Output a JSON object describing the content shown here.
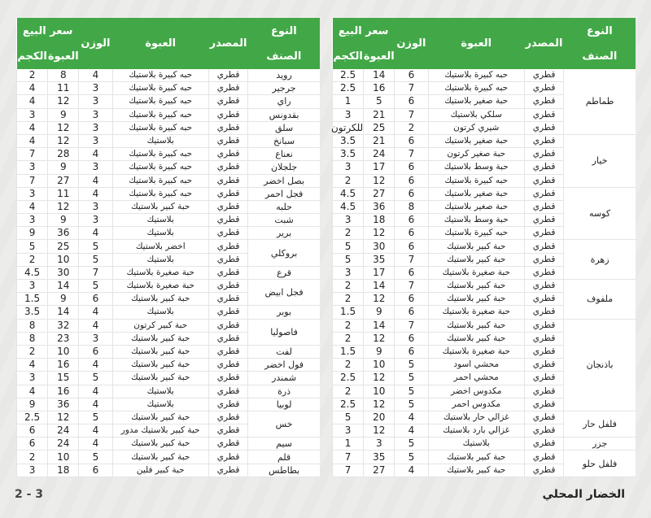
{
  "headers": {
    "type_top": "النوع",
    "type_bottom": "الصنف",
    "source": "المصدر",
    "package": "العبوة",
    "weight": "الوزن",
    "price": "سعر البيع",
    "price_box": "العبوة",
    "price_kg": "الكجم"
  },
  "colors": {
    "header_green": "#42a847"
  },
  "right_table": [
    {
      "type": "طماطم",
      "items": [
        [
          "قطري",
          "حبه كبيرة بلاستيك",
          "6",
          "14",
          "2.5"
        ],
        [
          "قطري",
          "حبه كبيرة بلاستيك",
          "7",
          "16",
          "2.5"
        ],
        [
          "قطري",
          "حبة صغير بلاستيك",
          "6",
          "5",
          "1"
        ],
        [
          "قطري",
          "سلكي بلاستيك",
          "7",
          "21",
          "3"
        ],
        [
          "قطري",
          "شيري كرتون",
          "2",
          "25",
          "للكرتون"
        ]
      ]
    },
    {
      "type": "خيار",
      "items": [
        [
          "قطري",
          "حبة صغير بلاستيك",
          "6",
          "21",
          "3.5"
        ],
        [
          "قطري",
          "حبة صغير كرتون",
          "7",
          "24",
          "3.5"
        ],
        [
          "قطري",
          "حبة وسط بلاستيك",
          "6",
          "17",
          "3"
        ],
        [
          "قطري",
          "حبه كبيرة بلاستيك",
          "6",
          "12",
          "2"
        ]
      ]
    },
    {
      "type": "كوسه",
      "items": [
        [
          "قطري",
          "حبة صغير بلاستيك",
          "6",
          "27",
          "4.5"
        ],
        [
          "قطري",
          "حبة صغير بلاستيك",
          "8",
          "36",
          "4.5"
        ],
        [
          "قطري",
          "حبة وسط بلاستيك",
          "6",
          "18",
          "3"
        ],
        [
          "قطري",
          "حبه كبيرة بلاستيك",
          "6",
          "12",
          "2"
        ]
      ]
    },
    {
      "type": "زهرة",
      "items": [
        [
          "قطري",
          "حبة كبير بلاستيك",
          "6",
          "30",
          "5"
        ],
        [
          "قطري",
          "حبة كبير بلاستيك",
          "7",
          "35",
          "5"
        ],
        [
          "قطري",
          "حبة صغيرة بلاستيك",
          "6",
          "17",
          "3"
        ]
      ]
    },
    {
      "type": "ملفوف",
      "items": [
        [
          "قطري",
          "حبة كبير بلاستيك",
          "7",
          "14",
          "2"
        ],
        [
          "قطري",
          "حبة كبير بلاستيك",
          "6",
          "12",
          "2"
        ],
        [
          "قطري",
          "حبة صغيرة بلاستيك",
          "6",
          "9",
          "1.5"
        ]
      ]
    },
    {
      "type": "باذنجان",
      "items": [
        [
          "قطري",
          "حبة كبير بلاستيك",
          "7",
          "14",
          "2"
        ],
        [
          "قطري",
          "حبة كبير بلاستيك",
          "6",
          "12",
          "2"
        ],
        [
          "قطري",
          "حبة صغيرة بلاستيك",
          "6",
          "9",
          "1.5"
        ],
        [
          "قطري",
          "محشي اسود",
          "5",
          "10",
          "2"
        ],
        [
          "قطري",
          "محشي احمر",
          "5",
          "12",
          "2.5"
        ],
        [
          "قطري",
          "مكدوس اخضر",
          "5",
          "10",
          "2"
        ],
        [
          "قطري",
          "مكدوس احمر",
          "5",
          "12",
          "2.5"
        ]
      ]
    },
    {
      "type": "فلفل حار",
      "items": [
        [
          "قطري",
          "غزالي حار بلاستيك",
          "4",
          "20",
          "5"
        ],
        [
          "قطري",
          "غزالي بارد بلاستيك",
          "4",
          "12",
          "3"
        ]
      ]
    },
    {
      "type": "جزر",
      "items": [
        [
          "قطري",
          "بلاستيك",
          "5",
          "3",
          "1"
        ]
      ]
    },
    {
      "type": "فلفل حلو",
      "items": [
        [
          "قطري",
          "حبة كبير بلاستيك",
          "5",
          "35",
          "7"
        ],
        [
          "قطري",
          "حبة كبير بلاستيك",
          "4",
          "27",
          "7"
        ]
      ]
    }
  ],
  "left_table": [
    {
      "type": "رويد",
      "items": [
        [
          "قطري",
          "حبه كبيرة بلاستيك",
          "4",
          "8",
          "2"
        ]
      ]
    },
    {
      "type": "جرجير",
      "items": [
        [
          "قطري",
          "حبه كبيرة بلاستيك",
          "3",
          "11",
          "4"
        ]
      ]
    },
    {
      "type": "راي",
      "items": [
        [
          "قطري",
          "حبه كبيرة بلاستيك",
          "3",
          "12",
          "4"
        ]
      ]
    },
    {
      "type": "بقدونس",
      "items": [
        [
          "قطري",
          "حبه كبيرة بلاستيك",
          "3",
          "9",
          "3"
        ]
      ]
    },
    {
      "type": "سلق",
      "items": [
        [
          "قطري",
          "حبه كبيرة بلاستيك",
          "3",
          "12",
          "4"
        ]
      ]
    },
    {
      "type": "سبانخ",
      "items": [
        [
          "قطري",
          "بلاستيك",
          "3",
          "12",
          "4"
        ]
      ]
    },
    {
      "type": "نعناع",
      "items": [
        [
          "قطري",
          "حبه كبيرة بلاستيك",
          "4",
          "28",
          "7"
        ]
      ]
    },
    {
      "type": "جلجلان",
      "items": [
        [
          "قطري",
          "حبه كبيرة بلاستيك",
          "3",
          "9",
          "3"
        ]
      ]
    },
    {
      "type": "بصل اخضر",
      "items": [
        [
          "قطري",
          "حبه كبيرة بلاستيك",
          "4",
          "27",
          "7"
        ]
      ]
    },
    {
      "type": "فجل احمر",
      "items": [
        [
          "قطري",
          "حبه كبيرة بلاستيك",
          "4",
          "11",
          "3"
        ]
      ]
    },
    {
      "type": "حلبه",
      "items": [
        [
          "قطري",
          "حبة كبير بلاستيك",
          "3",
          "12",
          "4"
        ]
      ]
    },
    {
      "type": "شبت",
      "items": [
        [
          "قطري",
          "بلاستيك",
          "3",
          "9",
          "3"
        ]
      ]
    },
    {
      "type": "برير",
      "items": [
        [
          "قطري",
          "بلاستيك",
          "4",
          "36",
          "9"
        ]
      ]
    },
    {
      "type": "بروكلي",
      "items": [
        [
          "قطري",
          "اخضر بلاستيك",
          "5",
          "25",
          "5"
        ],
        [
          "قطري",
          "بلاستيك",
          "5",
          "10",
          "2"
        ]
      ]
    },
    {
      "type": "قرع",
      "items": [
        [
          "قطري",
          "حبة صغيرة بلاستيك",
          "7",
          "30",
          "4.5"
        ]
      ]
    },
    {
      "type": "فجل ابيض",
      "items": [
        [
          "قطري",
          "حبة صغيرة بلاستيك",
          "5",
          "14",
          "3"
        ],
        [
          "قطري",
          "حبة كبير بلاستيك",
          "6",
          "9",
          "1.5"
        ]
      ]
    },
    {
      "type": "بوبر",
      "items": [
        [
          "قطري",
          "بلاستيك",
          "4",
          "14",
          "3.5"
        ]
      ]
    },
    {
      "type": "فاصوليا",
      "items": [
        [
          "قطري",
          "حبة كبير كرتون",
          "4",
          "32",
          "8"
        ],
        [
          "قطري",
          "حبة كبير بلاستيك",
          "3",
          "23",
          "8"
        ]
      ]
    },
    {
      "type": "لفت",
      "items": [
        [
          "قطري",
          "حبة كبير بلاستيك",
          "6",
          "10",
          "2"
        ]
      ]
    },
    {
      "type": "فول اخضر",
      "items": [
        [
          "قطري",
          "حبة كبير بلاستيك",
          "4",
          "16",
          "4"
        ]
      ]
    },
    {
      "type": "شمندر",
      "items": [
        [
          "قطري",
          "حبة كبير بلاستيك",
          "5",
          "15",
          "3"
        ]
      ]
    },
    {
      "type": "ذرة",
      "items": [
        [
          "قطري",
          "بلاستيك",
          "4",
          "16",
          "4"
        ]
      ]
    },
    {
      "type": "لوبيا",
      "items": [
        [
          "قطري",
          "بلاستيك",
          "4",
          "36",
          "9"
        ]
      ]
    },
    {
      "type": "خس",
      "items": [
        [
          "قطري",
          "حبة كبير بلاستيك",
          "5",
          "12",
          "2.5"
        ],
        [
          "قطري",
          "حبة كبير بلاستيك مدور",
          "4",
          "24",
          "6"
        ]
      ]
    },
    {
      "type": "سيم",
      "items": [
        [
          "قطري",
          "حبة كبير بلاستيك",
          "4",
          "24",
          "6"
        ]
      ]
    },
    {
      "type": "قلم",
      "items": [
        [
          "قطري",
          "حبة كبير بلاستيك",
          "5",
          "10",
          "2"
        ]
      ]
    },
    {
      "type": "بطاطس",
      "items": [
        [
          "قطري",
          "حبة كبير فلين",
          "6",
          "18",
          "3"
        ]
      ]
    }
  ],
  "footer": {
    "title": "الخضار المحلي",
    "page": "2 - 3"
  }
}
